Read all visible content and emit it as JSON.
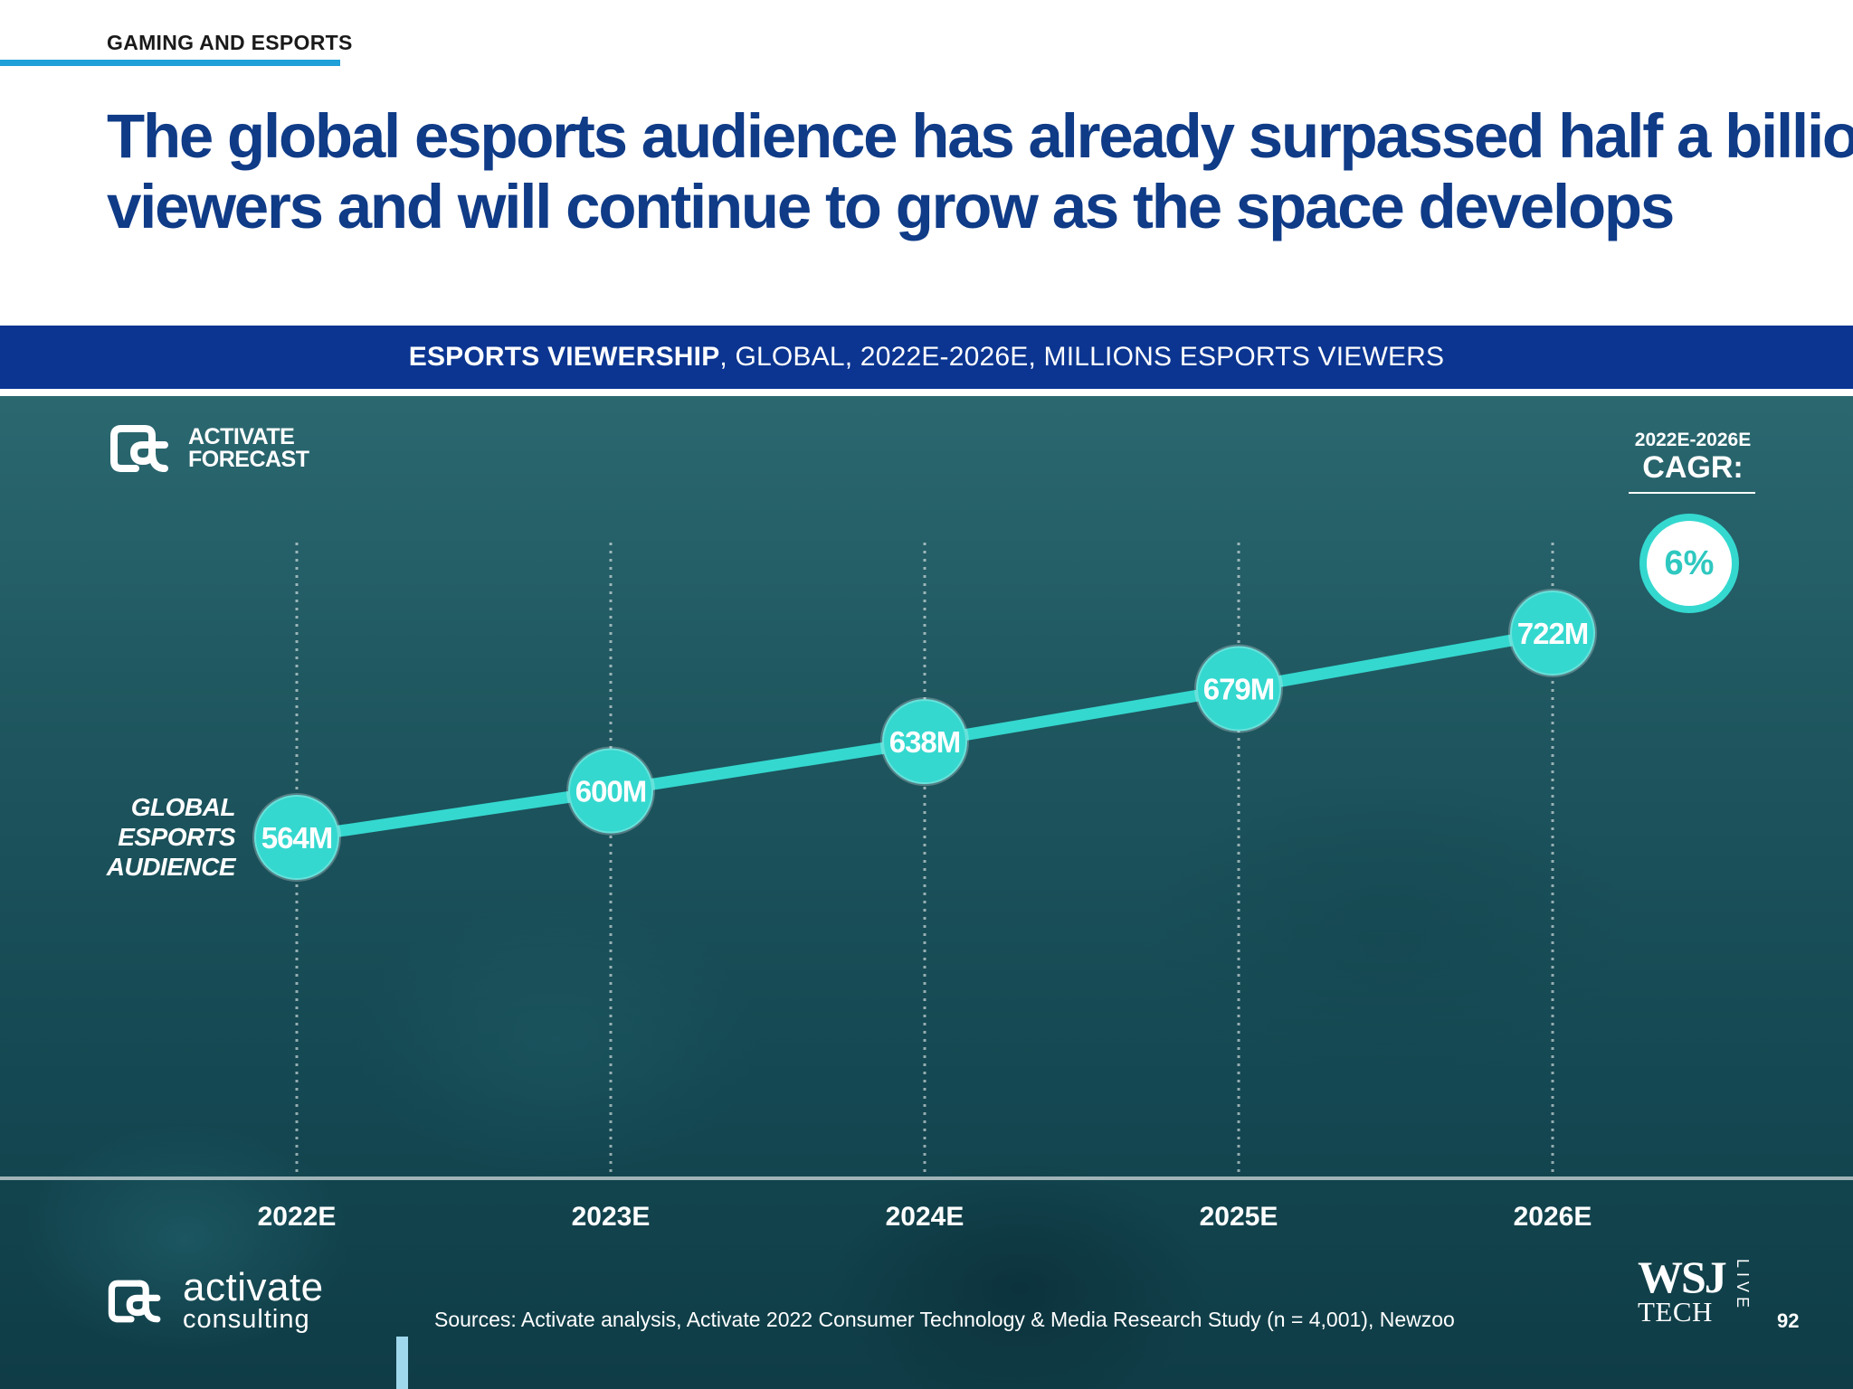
{
  "header": {
    "section": "GAMING AND ESPORTS",
    "headline_line1": "The global esports audience has already surpassed half a billion",
    "headline_line2": "viewers and will continue to grow as the space develops"
  },
  "banner": {
    "bold": "ESPORTS VIEWERSHIP",
    "rest": ", GLOBAL, 2022E-2026E, MILLIONS ESPORTS VIEWERS"
  },
  "badge": {
    "line1": "ACTIVATE",
    "line2": "FORECAST"
  },
  "cagr": {
    "period": "2022E-2026E",
    "label": "CAGR:",
    "value": "6%"
  },
  "series_label": {
    "line1": "GLOBAL",
    "line2": "ESPORTS",
    "line3": "AUDIENCE"
  },
  "chart_data": {
    "type": "line",
    "title": "ESPORTS VIEWERSHIP, GLOBAL, 2022E-2026E, MILLIONS ESPORTS VIEWERS",
    "categories": [
      "2022E",
      "2023E",
      "2024E",
      "2025E",
      "2026E"
    ],
    "series": [
      {
        "name": "GLOBAL ESPORTS AUDIENCE",
        "values": [
          564,
          600,
          638,
          679,
          722
        ]
      }
    ],
    "data_labels": [
      "564M",
      "600M",
      "638M",
      "679M",
      "722M"
    ],
    "ylabel": "",
    "xlabel": "",
    "grid": false
  },
  "footer": {
    "logo_main": "activate",
    "logo_sub": "consulting",
    "sources": "Sources: Activate analysis, Activate 2022 Consumer Technology & Media Research Study (n = 4,001), Newzoo",
    "wsj": "WSJ",
    "tech": "TECH",
    "live": "LIVE",
    "page": "92"
  },
  "colors": {
    "navy": "#0f3b87",
    "banner": "#0b3591",
    "teal": "#34d8cf",
    "accent_blue": "#1fa0d8"
  }
}
